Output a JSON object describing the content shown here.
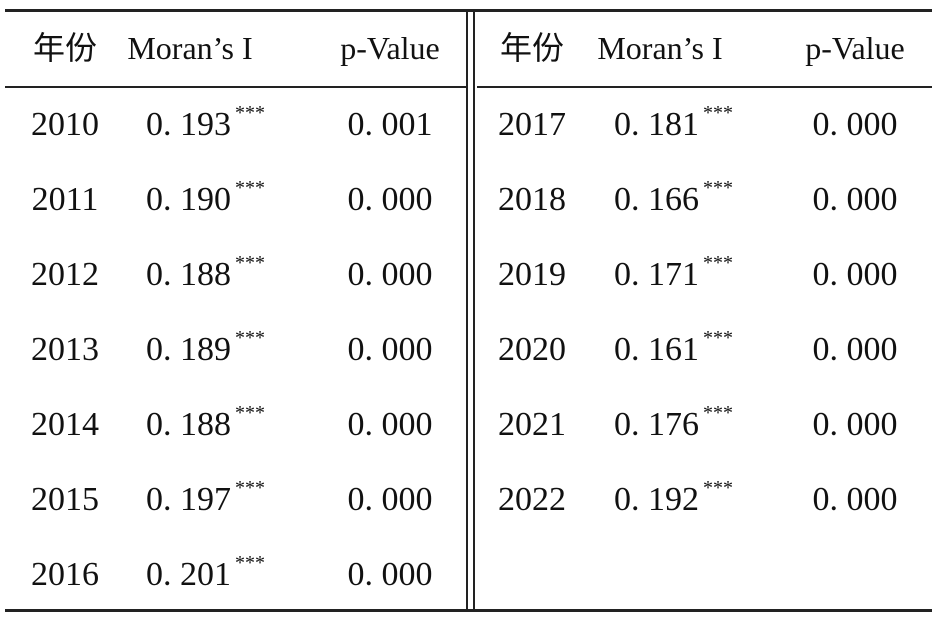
{
  "table": {
    "left": {
      "header": [
        "年份",
        "Moran’s I",
        "p-Value"
      ],
      "rows": [
        [
          "2010",
          "0. 193",
          "***",
          "0. 001"
        ],
        [
          "2011",
          "0. 190",
          "***",
          "0. 000"
        ],
        [
          "2012",
          "0. 188",
          "***",
          "0. 000"
        ],
        [
          "2013",
          "0. 189",
          "***",
          "0. 000"
        ],
        [
          "2014",
          "0. 188",
          "***",
          "0. 000"
        ],
        [
          "2015",
          "0. 197",
          "***",
          "0. 000"
        ],
        [
          "2016",
          "0. 201",
          "***",
          "0. 000"
        ]
      ]
    },
    "right": {
      "header": [
        "年份",
        "Moran’s I",
        "p-Value"
      ],
      "rows": [
        [
          "2017",
          "0. 181",
          "***",
          "0. 000"
        ],
        [
          "2018",
          "0. 166",
          "***",
          "0. 000"
        ],
        [
          "2019",
          "0. 171",
          "***",
          "0. 000"
        ],
        [
          "2020",
          "0. 161",
          "***",
          "0. 000"
        ],
        [
          "2021",
          "0. 176",
          "***",
          "0. 000"
        ],
        [
          "2022",
          "0. 192",
          "***",
          "0. 000"
        ]
      ]
    }
  }
}
